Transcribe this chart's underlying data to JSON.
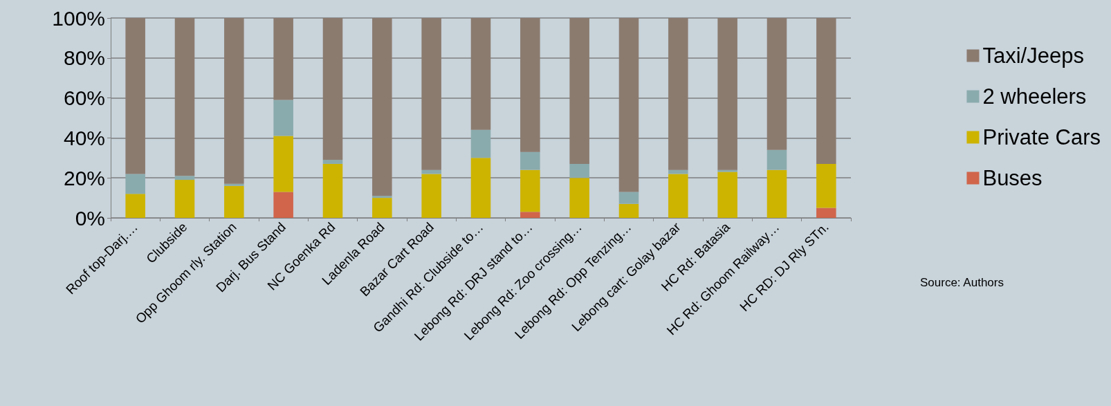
{
  "chart_data": {
    "type": "bar",
    "stacked": true,
    "categories": [
      "Roof top-Darj.…",
      "Clubside",
      "Opp Ghoom rly. Station",
      "Darj. Bus Stand",
      "NC Goenka Rd",
      "Ladenla Road",
      "Bazar Cart Road",
      "Gandhi Rd: Clubside to…",
      "Lebong Rd: DRJ stand to…",
      "Lebong Rd: Zoo crossing…",
      "Lebong Rd: Opp Tenzing…",
      "Lebong cart: Golay bazar",
      "HC Rd: Batasia",
      "HC Rd: Ghoom Railway…",
      "HC RD: DJ Rly STn."
    ],
    "series": [
      {
        "name": "Buses",
        "color": "#d0654b",
        "values": [
          0,
          0,
          0,
          13,
          0,
          0,
          0,
          0,
          3,
          0,
          0,
          0,
          0,
          0,
          5
        ]
      },
      {
        "name": "Private Cars",
        "color": "#cdb400",
        "values": [
          12,
          19,
          16,
          28,
          27,
          10,
          22,
          30,
          21,
          20,
          7,
          22,
          23,
          24,
          22
        ]
      },
      {
        "name": "2 wheelers",
        "color": "#8aabad",
        "values": [
          10,
          2,
          1,
          18,
          2,
          1,
          2,
          14,
          9,
          7,
          6,
          2,
          1,
          10,
          0
        ]
      },
      {
        "name": "Taxi/Jeeps",
        "color": "#8b7b6f",
        "values": [
          78,
          79,
          83,
          41,
          71,
          89,
          76,
          56,
          67,
          73,
          87,
          76,
          76,
          66,
          73
        ]
      }
    ],
    "ylim": [
      0,
      100
    ],
    "yticks": [
      {
        "value": 0,
        "label": "0%"
      },
      {
        "value": 20,
        "label": "20%"
      },
      {
        "value": 40,
        "label": "40%"
      },
      {
        "value": 60,
        "label": "60%"
      },
      {
        "value": 80,
        "label": "80%"
      },
      {
        "value": 100,
        "label": "100%"
      }
    ],
    "grid": "y",
    "legend": "right",
    "annotations": [
      "Source: Authors"
    ]
  }
}
